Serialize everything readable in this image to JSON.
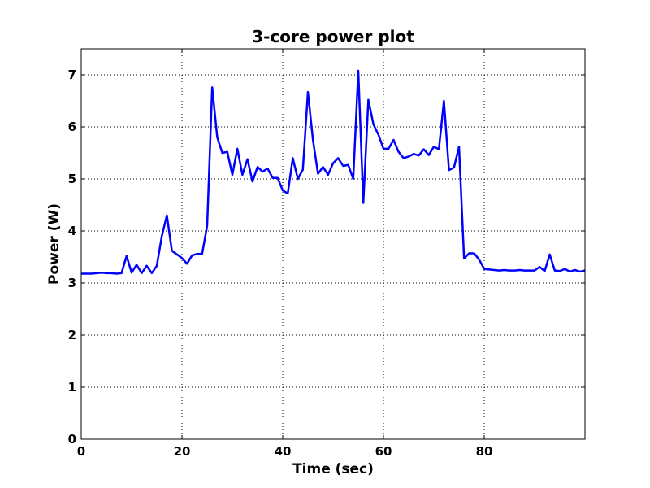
{
  "chart_data": {
    "type": "line",
    "title": "3-core power plot",
    "xlabel": "Time (sec)",
    "ylabel": "Power (W)",
    "xlim": [
      0,
      100
    ],
    "ylim": [
      0,
      7.5
    ],
    "xticks": [
      0,
      20,
      40,
      60,
      80
    ],
    "yticks": [
      0,
      1,
      2,
      3,
      4,
      5,
      6,
      7
    ],
    "grid": true,
    "series": [
      {
        "color": "#0000ff",
        "x": [
          0,
          1,
          2,
          3,
          4,
          5,
          6,
          7,
          8,
          9,
          10,
          11,
          12,
          13,
          14,
          15,
          16,
          17,
          18,
          19,
          20,
          21,
          22,
          23,
          24,
          25,
          26,
          27,
          28,
          29,
          30,
          31,
          32,
          33,
          34,
          35,
          36,
          37,
          38,
          39,
          40,
          41,
          42,
          43,
          44,
          45,
          46,
          47,
          48,
          49,
          50,
          51,
          52,
          53,
          54,
          55,
          56,
          57,
          58,
          59,
          60,
          61,
          62,
          63,
          64,
          65,
          66,
          67,
          68,
          69,
          70,
          71,
          72,
          73,
          74,
          75,
          76,
          77,
          78,
          79,
          80,
          81,
          82,
          83,
          84,
          85,
          86,
          87,
          88,
          89,
          90,
          91,
          92,
          93,
          94,
          95,
          96,
          97,
          98,
          99,
          100
        ],
        "values": [
          3.18,
          3.18,
          3.18,
          3.19,
          3.2,
          3.19,
          3.19,
          3.18,
          3.19,
          3.52,
          3.2,
          3.35,
          3.19,
          3.33,
          3.19,
          3.33,
          3.9,
          4.3,
          3.62,
          3.55,
          3.48,
          3.37,
          3.53,
          3.56,
          3.56,
          4.1,
          6.76,
          5.8,
          5.5,
          5.52,
          5.08,
          5.58,
          5.08,
          5.38,
          4.95,
          5.23,
          5.14,
          5.2,
          5.02,
          5.02,
          4.78,
          4.72,
          5.4,
          5.0,
          5.18,
          6.67,
          5.75,
          5.1,
          5.23,
          5.08,
          5.3,
          5.4,
          5.25,
          5.27,
          5.0,
          7.08,
          4.54,
          6.52,
          6.05,
          5.85,
          5.58,
          5.58,
          5.75,
          5.52,
          5.4,
          5.43,
          5.48,
          5.45,
          5.57,
          5.46,
          5.62,
          5.57,
          6.5,
          5.17,
          5.22,
          5.62,
          3.47,
          3.57,
          3.57,
          3.45,
          3.27,
          3.26,
          3.25,
          3.24,
          3.25,
          3.24,
          3.24,
          3.25,
          3.24,
          3.24,
          3.24,
          3.31,
          3.23,
          3.55,
          3.24,
          3.23,
          3.27,
          3.22,
          3.25,
          3.22,
          3.24
        ]
      }
    ]
  }
}
